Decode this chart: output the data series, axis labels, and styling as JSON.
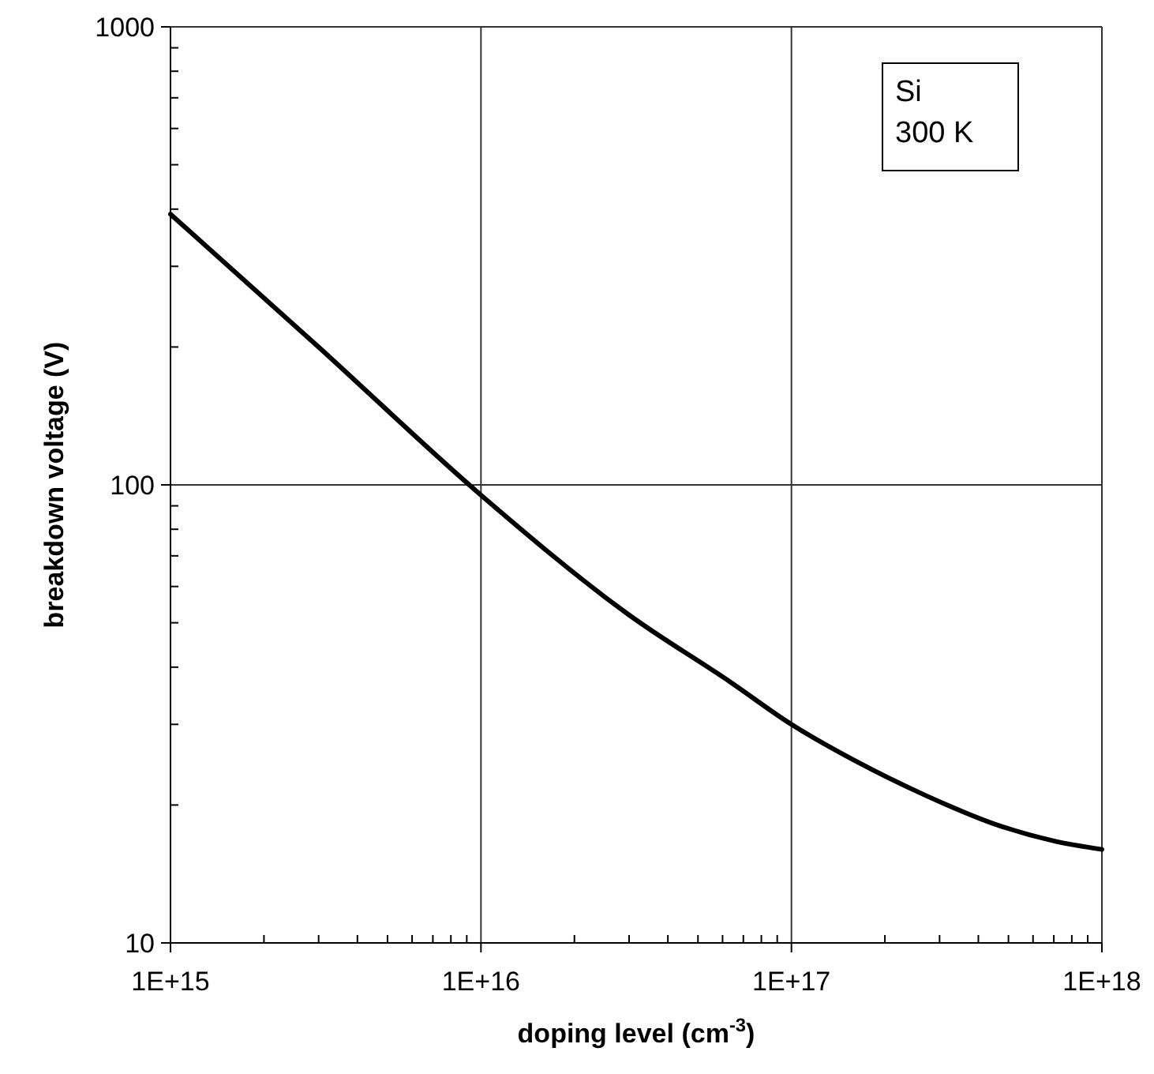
{
  "chart_data": {
    "type": "line",
    "xlabel": "doping level (cm$^{-3}$)",
    "ylabel": "breakdown voltage (V)",
    "log": "xy",
    "grid": true,
    "marker": "none",
    "line_style": "solid",
    "xlim": [
      1000000000000000.0,
      1e+18
    ],
    "xticks": [
      {
        "value": 1000000000000000.0,
        "label": "1E+15"
      },
      {
        "value": 1e+16,
        "label": "1E+16"
      },
      {
        "value": 1e+17,
        "label": "1E+17"
      },
      {
        "value": 1e+18,
        "label": "1E+18"
      }
    ],
    "ylim": [
      10,
      1000
    ],
    "yticks": [
      10,
      100,
      1000
    ],
    "annotations": [
      "Si",
      "300 K"
    ],
    "series": [
      {
        "color": "#000000",
        "x": [
          1000000000000000.0,
          3000000000000000.0,
          1e+16,
          3e+16,
          6.4e+16,
          1e+17,
          1.6e+17,
          2.7e+17,
          4.7e+17,
          7e+17,
          1e+18
        ],
        "values": [
          390,
          200,
          95,
          52,
          37,
          30,
          25,
          21,
          18,
          16.7,
          16
        ]
      }
    ]
  }
}
